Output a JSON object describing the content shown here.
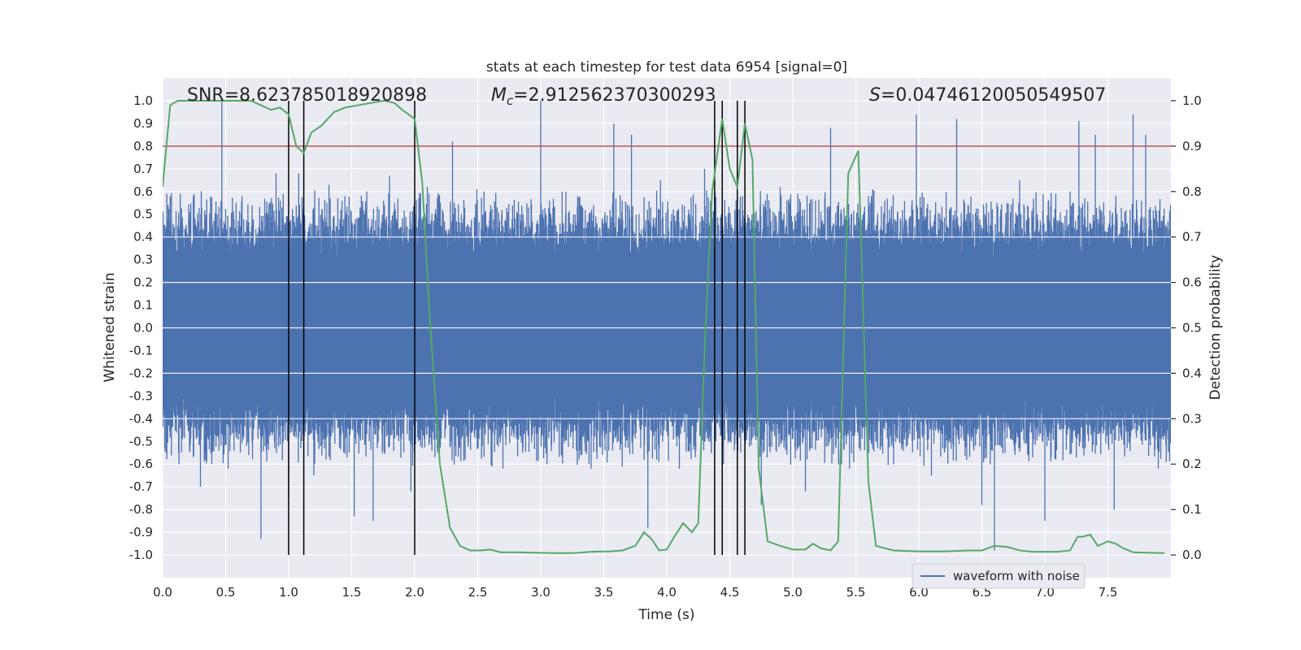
{
  "chart_data": {
    "type": "line",
    "title": "stats at each timestep for test data 6954 [signal=0]",
    "xlabel": "Time (s)",
    "ylabel_left": "Whitened strain",
    "ylabel_right": "Detection probability",
    "xlim": [
      0,
      8
    ],
    "ylim_left": [
      -1.1,
      1.1
    ],
    "ylim_right": [
      -0.05,
      1.05
    ],
    "x_ticks": [
      "0.0",
      "0.5",
      "1.0",
      "1.5",
      "2.0",
      "2.5",
      "3.0",
      "3.5",
      "4.0",
      "4.5",
      "5.0",
      "5.5",
      "6.0",
      "6.5",
      "7.0",
      "7.5"
    ],
    "y_left_ticks": [
      "1.0",
      "0.9",
      "0.8",
      "0.7",
      "0.6",
      "0.5",
      "0.4",
      "0.3",
      "0.2",
      "0.1",
      "0.0",
      "-0.1",
      "-0.2",
      "-0.3",
      "-0.4",
      "-0.5",
      "-0.6",
      "-0.7",
      "-0.8",
      "-0.9",
      "-1.0"
    ],
    "y_right_ticks": [
      "1.0",
      "0.9",
      "0.8",
      "0.7",
      "0.6",
      "0.5",
      "0.4",
      "0.3",
      "0.2",
      "0.1",
      "0.0"
    ],
    "grid": true,
    "legend_position": "bottom-right",
    "annotations": {
      "snr": "SNR=8.623785018920898",
      "mc_symbol": "M",
      "mc_subscript": "c",
      "mc_value": "=2.912562370300293",
      "s_symbol": "S",
      "s_value": "=0.04746120050549507"
    },
    "threshold": {
      "value": 0.9,
      "color": "#c44e52"
    },
    "vertical_lines": [
      1.0,
      1.12,
      2.0,
      4.38,
      4.44,
      4.56,
      4.62
    ],
    "series": [
      {
        "name": "waveform with noise",
        "color": "#4c72b0",
        "description": "noisy whitened strain, dense band roughly -0.4..0.4 with spikes",
        "band": 0.45,
        "spikes": [
          [
            0.06,
            0.58
          ],
          [
            0.13,
            -0.6
          ],
          [
            0.25,
            0.59
          ],
          [
            0.3,
            -0.7
          ],
          [
            0.47,
            1.0
          ],
          [
            0.52,
            -0.62
          ],
          [
            0.63,
            0.58
          ],
          [
            0.78,
            -0.93
          ],
          [
            0.9,
            0.68
          ],
          [
            1.0,
            -0.75
          ],
          [
            1.08,
            0.68
          ],
          [
            1.2,
            -0.65
          ],
          [
            1.32,
            0.63
          ],
          [
            1.52,
            -0.83
          ],
          [
            1.62,
            0.6
          ],
          [
            1.67,
            -0.85
          ],
          [
            1.8,
            0.67
          ],
          [
            1.97,
            -0.72
          ],
          [
            2.1,
            0.62
          ],
          [
            2.3,
            0.82
          ],
          [
            2.4,
            -0.58
          ],
          [
            2.55,
            0.6
          ],
          [
            2.7,
            -0.62
          ],
          [
            3.0,
            1.0
          ],
          [
            3.05,
            -0.6
          ],
          [
            3.2,
            0.6
          ],
          [
            3.4,
            -0.62
          ],
          [
            3.58,
            0.9
          ],
          [
            3.72,
            0.85
          ],
          [
            3.85,
            -0.88
          ],
          [
            3.95,
            0.65
          ],
          [
            4.1,
            -0.62
          ],
          [
            4.3,
            0.7
          ],
          [
            4.45,
            -0.6
          ],
          [
            4.6,
            0.58
          ],
          [
            4.75,
            -0.78
          ],
          [
            4.9,
            0.62
          ],
          [
            5.1,
            -0.72
          ],
          [
            5.3,
            0.88
          ],
          [
            5.45,
            -0.62
          ],
          [
            5.6,
            0.58
          ],
          [
            5.8,
            -0.6
          ],
          [
            5.98,
            0.94
          ],
          [
            6.1,
            -0.65
          ],
          [
            6.3,
            0.92
          ],
          [
            6.5,
            -0.78
          ],
          [
            6.6,
            -0.98
          ],
          [
            6.8,
            0.65
          ],
          [
            7.0,
            -0.85
          ],
          [
            7.2,
            0.6
          ],
          [
            7.27,
            0.91
          ],
          [
            7.4,
            0.85
          ],
          [
            7.55,
            -0.8
          ],
          [
            7.7,
            0.94
          ],
          [
            7.8,
            0.85
          ],
          [
            7.9,
            -0.62
          ]
        ]
      },
      {
        "name": "detection probability",
        "color": "#55a868",
        "x": [
          0.0,
          0.06,
          0.12,
          0.2,
          0.3,
          0.4,
          0.5,
          0.6,
          0.7,
          0.78,
          0.86,
          0.93,
          1.0,
          1.06,
          1.12,
          1.18,
          1.26,
          1.36,
          1.45,
          1.55,
          1.65,
          1.76,
          1.84,
          1.9,
          2.0,
          2.06,
          2.12,
          2.2,
          2.28,
          2.36,
          2.44,
          2.52,
          2.6,
          2.68,
          2.8,
          2.95,
          3.1,
          3.25,
          3.4,
          3.55,
          3.65,
          3.75,
          3.82,
          3.88,
          3.94,
          4.0,
          4.06,
          4.13,
          4.2,
          4.25,
          4.3,
          4.36,
          4.44,
          4.5,
          4.56,
          4.62,
          4.68,
          4.73,
          4.8,
          4.9,
          5.0,
          5.1,
          5.16,
          5.22,
          5.3,
          5.36,
          5.44,
          5.52,
          5.6,
          5.66,
          5.8,
          6.0,
          6.2,
          6.4,
          6.5,
          6.6,
          6.7,
          6.8,
          6.9,
          7.0,
          7.1,
          7.2,
          7.26,
          7.3,
          7.36,
          7.42,
          7.5,
          7.56,
          7.62,
          7.7,
          7.8,
          7.95
        ],
        "y": [
          0.81,
          0.99,
          1.0,
          1.0,
          1.0,
          1.0,
          1.0,
          1.0,
          1.0,
          0.99,
          0.98,
          0.985,
          0.97,
          0.9,
          0.885,
          0.93,
          0.945,
          0.975,
          0.985,
          0.99,
          0.995,
          1.0,
          0.995,
          0.98,
          0.96,
          0.82,
          0.52,
          0.2,
          0.06,
          0.02,
          0.01,
          0.01,
          0.012,
          0.006,
          0.006,
          0.005,
          0.004,
          0.004,
          0.007,
          0.008,
          0.01,
          0.02,
          0.05,
          0.035,
          0.01,
          0.012,
          0.04,
          0.07,
          0.05,
          0.07,
          0.45,
          0.8,
          0.96,
          0.85,
          0.81,
          0.95,
          0.87,
          0.19,
          0.03,
          0.02,
          0.012,
          0.012,
          0.025,
          0.015,
          0.01,
          0.03,
          0.84,
          0.89,
          0.16,
          0.02,
          0.01,
          0.008,
          0.008,
          0.01,
          0.01,
          0.02,
          0.018,
          0.01,
          0.007,
          0.007,
          0.007,
          0.01,
          0.04,
          0.04,
          0.045,
          0.02,
          0.03,
          0.025,
          0.015,
          0.006,
          0.005,
          0.004
        ]
      }
    ]
  }
}
